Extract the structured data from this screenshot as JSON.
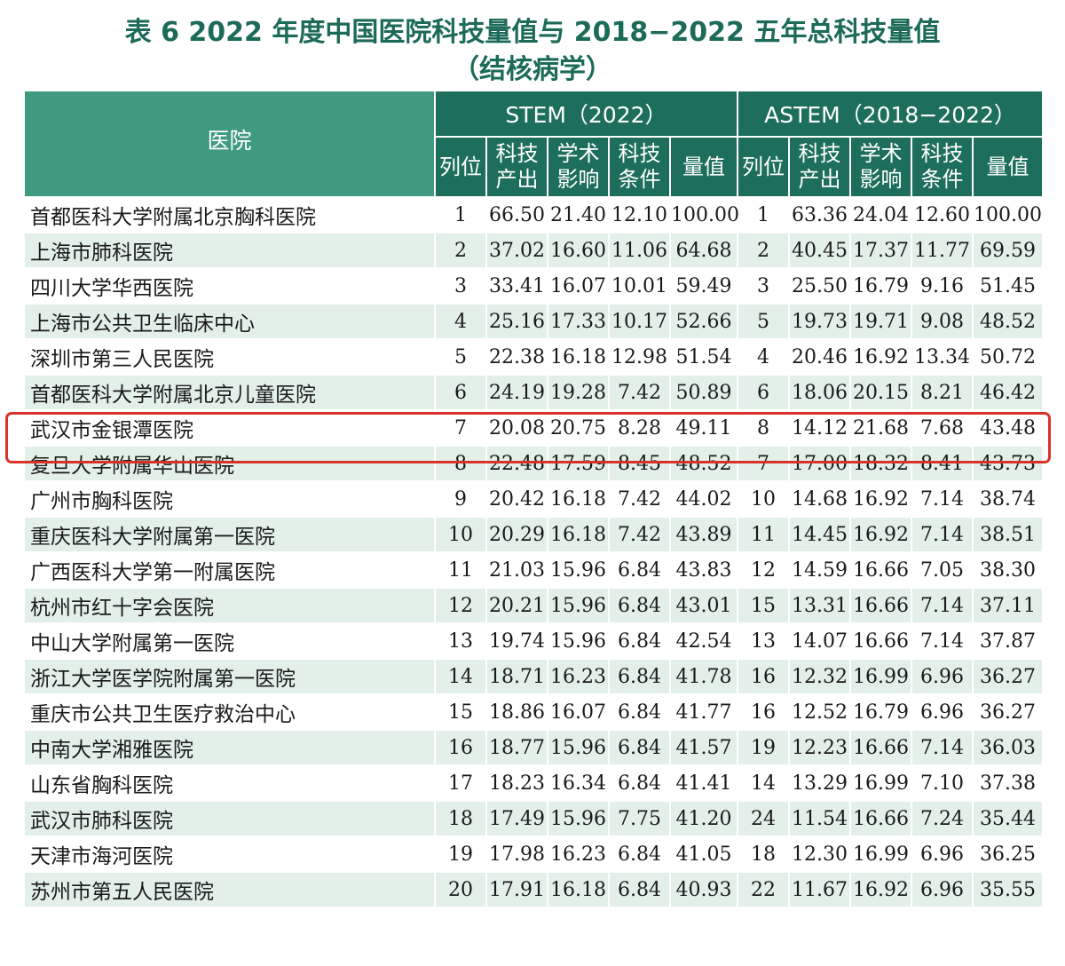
{
  "title_line1": "表 6   2022 年度中国医院科技量值与 2018−2022 五年总科技量值",
  "title_line2": "（结核病学）",
  "header": {
    "hospital": "医院",
    "stem_group": "STEM（2022）",
    "astem_group": "ASTEM（2018−2022）",
    "stem_cols": [
      "列位",
      "科技\n产出",
      "学术\n影响",
      "科技\n条件",
      "量值"
    ],
    "astem_cols": [
      "列位",
      "科技\n产出",
      "学术\n影响",
      "科技\n条件",
      "量值"
    ]
  },
  "rows": [
    [
      "首都医科大学附属北京胸科医院",
      "1",
      "66.50",
      "21.40",
      "12.10",
      "100.00",
      "1",
      "63.36",
      "24.04",
      "12.60",
      "100.00"
    ],
    [
      "上海市肺科医院",
      "2",
      "37.02",
      "16.60",
      "11.06",
      "64.68",
      "2",
      "40.45",
      "17.37",
      "11.77",
      "69.59"
    ],
    [
      "四川大学华西医院",
      "3",
      "33.41",
      "16.07",
      "10.01",
      "59.49",
      "3",
      "25.50",
      "16.79",
      "9.16",
      "51.45"
    ],
    [
      "上海市公共卫生临床中心",
      "4",
      "25.16",
      "17.33",
      "10.17",
      "52.66",
      "5",
      "19.73",
      "19.71",
      "9.08",
      "48.52"
    ],
    [
      "深圳市第三人民医院",
      "5",
      "22.38",
      "16.18",
      "12.98",
      "51.54",
      "4",
      "20.46",
      "16.92",
      "13.34",
      "50.72"
    ],
    [
      "首都医科大学附属北京儿童医院",
      "6",
      "24.19",
      "19.28",
      "7.42",
      "50.89",
      "6",
      "18.06",
      "20.15",
      "8.21",
      "46.42"
    ],
    [
      "武汉市金银潭医院",
      "7",
      "20.08",
      "20.75",
      "8.28",
      "49.11",
      "8",
      "14.12",
      "21.68",
      "7.68",
      "43.48"
    ],
    [
      "复旦大学附属华山医院",
      "8",
      "22.48",
      "17.59",
      "8.45",
      "48.52",
      "7",
      "17.00",
      "18.32",
      "8.41",
      "43.73"
    ],
    [
      "广州市胸科医院",
      "9",
      "20.42",
      "16.18",
      "7.42",
      "44.02",
      "10",
      "14.68",
      "16.92",
      "7.14",
      "38.74"
    ],
    [
      "重庆医科大学附属第一医院",
      "10",
      "20.29",
      "16.18",
      "7.42",
      "43.89",
      "11",
      "14.45",
      "16.92",
      "7.14",
      "38.51"
    ],
    [
      "广西医科大学第一附属医院",
      "11",
      "21.03",
      "15.96",
      "6.84",
      "43.83",
      "12",
      "14.59",
      "16.66",
      "7.05",
      "38.30"
    ],
    [
      "杭州市红十字会医院",
      "12",
      "20.21",
      "15.96",
      "6.84",
      "43.01",
      "15",
      "13.31",
      "16.66",
      "7.14",
      "37.11"
    ],
    [
      "中山大学附属第一医院",
      "13",
      "19.74",
      "15.96",
      "6.84",
      "42.54",
      "13",
      "14.07",
      "16.66",
      "7.14",
      "37.87"
    ],
    [
      "浙江大学医学院附属第一医院",
      "14",
      "18.71",
      "16.23",
      "6.84",
      "41.78",
      "16",
      "12.32",
      "16.99",
      "6.96",
      "36.27"
    ],
    [
      "重庆市公共卫生医疗救治中心",
      "15",
      "18.86",
      "16.07",
      "6.84",
      "41.77",
      "16",
      "12.52",
      "16.79",
      "6.96",
      "36.27"
    ],
    [
      "中南大学湘雅医院",
      "16",
      "18.77",
      "15.96",
      "6.84",
      "41.57",
      "19",
      "12.23",
      "16.66",
      "7.14",
      "36.03"
    ],
    [
      "山东省胸科医院",
      "17",
      "18.23",
      "16.34",
      "6.84",
      "41.41",
      "14",
      "13.29",
      "16.99",
      "7.10",
      "37.38"
    ],
    [
      "武汉市肺科医院",
      "18",
      "17.49",
      "15.96",
      "7.75",
      "41.20",
      "24",
      "11.54",
      "16.66",
      "7.24",
      "35.44"
    ],
    [
      "天津市海河医院",
      "19",
      "17.98",
      "16.23",
      "6.84",
      "41.05",
      "18",
      "12.30",
      "16.99",
      "6.96",
      "36.25"
    ],
    [
      "苏州市第五人民医院",
      "20",
      "17.91",
      "16.18",
      "6.84",
      "40.93",
      "22",
      "11.67",
      "16.92",
      "6.96",
      "35.55"
    ]
  ],
  "colors": {
    "header_dark": "#1d6e5c",
    "header_light": "#3f9a7f",
    "stripe": "#e2f0e9",
    "highlight": "#d9322b"
  }
}
